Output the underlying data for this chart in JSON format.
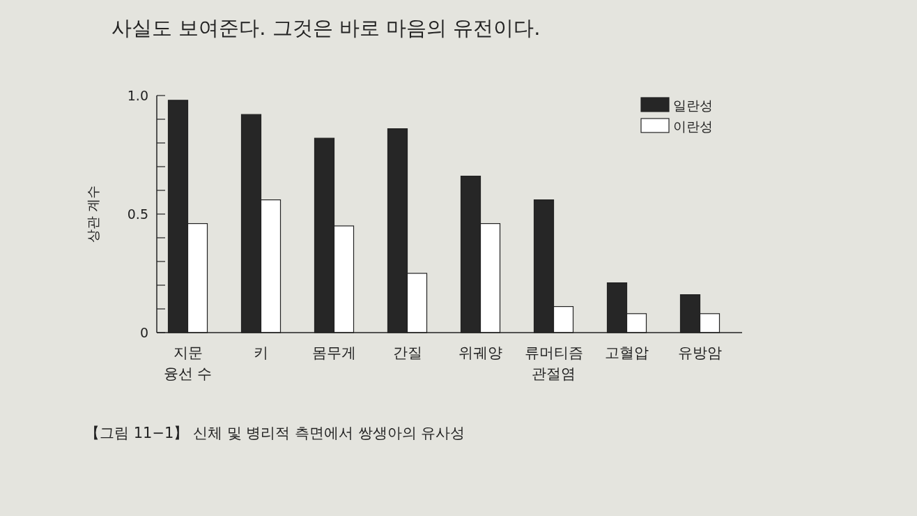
{
  "chart_data": {
    "type": "bar",
    "categories": [
      "지문\n융선 수",
      "키",
      "몸무게",
      "간질",
      "위궤양",
      "류머티즘\n관절염",
      "고혈압",
      "유방암"
    ],
    "series": [
      {
        "name": "일란성",
        "color": "#262626",
        "values": [
          0.98,
          0.92,
          0.82,
          0.86,
          0.66,
          0.56,
          0.21,
          0.16
        ]
      },
      {
        "name": "이란성",
        "color": "#ffffff",
        "values": [
          0.46,
          0.56,
          0.45,
          0.25,
          0.46,
          0.11,
          0.08,
          0.08
        ]
      }
    ],
    "ylim": [
      0,
      1
    ],
    "yticks": [
      0,
      {
        "value": 0.1,
        "label": null
      },
      {
        "value": 0.2,
        "label": null
      },
      {
        "value": 0.3,
        "label": null
      },
      {
        "value": 0.4,
        "label": null
      },
      0.5,
      {
        "value": 0.6,
        "label": null
      },
      {
        "value": 0.7,
        "label": null
      },
      {
        "value": 0.8,
        "label": null
      },
      {
        "value": 0.9,
        "label": null
      },
      {
        "value": 1,
        "label": "1.0"
      }
    ],
    "ylabel": "상관 계수",
    "legend": "top right",
    "annotations": [
      "사실도 보여준다. 그것은 바로 마음의 유전이다.",
      "【그림 11−1】 신체 및 병리적 측면에서 쌍생아의 유사성"
    ]
  }
}
